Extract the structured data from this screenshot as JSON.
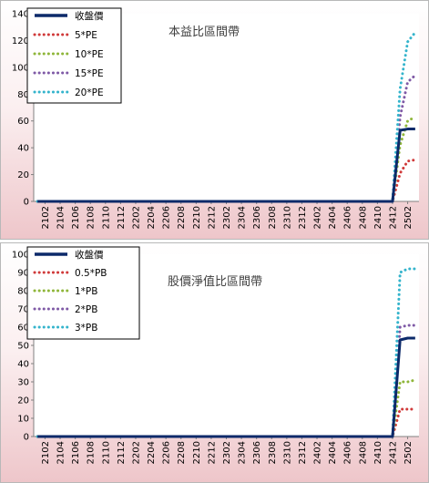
{
  "colors": {
    "close": "#0c2a6a",
    "low": "#d03a3a",
    "mid": "#8fb63a",
    "high": "#7f5aa6",
    "top": "#34b4cc"
  },
  "chart_data": [
    {
      "type": "line",
      "title": "本益比區間帶",
      "x": [
        "2101",
        "2102",
        "2103",
        "2104",
        "2105",
        "2106",
        "2107",
        "2108",
        "2109",
        "2110",
        "2111",
        "2112",
        "2201",
        "2202",
        "2203",
        "2204",
        "2205",
        "2206",
        "2207",
        "2208",
        "2209",
        "2210",
        "2211",
        "2212",
        "2301",
        "2302",
        "2303",
        "2304",
        "2305",
        "2306",
        "2307",
        "2308",
        "2309",
        "2310",
        "2311",
        "2312",
        "2401",
        "2402",
        "2403",
        "2404",
        "2405",
        "2406",
        "2407",
        "2408",
        "2409",
        "2410",
        "2411",
        "2412",
        "2501",
        "2502",
        "2503"
      ],
      "tick_labels": [
        "2102",
        "2104",
        "2106",
        "2108",
        "2110",
        "2112",
        "2202",
        "2204",
        "2206",
        "2208",
        "2210",
        "2212",
        "2302",
        "2304",
        "2306",
        "2308",
        "2310",
        "2312",
        "2402",
        "2404",
        "2406",
        "2408",
        "2410",
        "2412",
        "2502"
      ],
      "ylim": [
        0,
        140
      ],
      "yticks": [
        0,
        20,
        40,
        60,
        80,
        100,
        120,
        140
      ],
      "legend_position": "top-left",
      "series": [
        {
          "name": "收盤價",
          "style": "solid",
          "color_key": "close",
          "tail": [
            53,
            54,
            54
          ]
        },
        {
          "name": "5*PE",
          "style": "dotted",
          "color_key": "low",
          "tail": [
            21,
            30,
            31
          ]
        },
        {
          "name": "10*PE",
          "style": "dotted",
          "color_key": "mid",
          "tail": [
            42,
            60,
            63
          ]
        },
        {
          "name": "15*PE",
          "style": "dotted",
          "color_key": "high",
          "tail": [
            63,
            89,
            94
          ]
        },
        {
          "name": "20*PE",
          "style": "dotted",
          "color_key": "top",
          "tail": [
            84,
            119,
            126
          ]
        }
      ]
    },
    {
      "type": "line",
      "title": "股價淨值比區間帶",
      "x": [
        "2101",
        "2102",
        "2103",
        "2104",
        "2105",
        "2106",
        "2107",
        "2108",
        "2109",
        "2110",
        "2111",
        "2112",
        "2201",
        "2202",
        "2203",
        "2204",
        "2205",
        "2206",
        "2207",
        "2208",
        "2209",
        "2210",
        "2211",
        "2212",
        "2301",
        "2302",
        "2303",
        "2304",
        "2305",
        "2306",
        "2307",
        "2308",
        "2309",
        "2310",
        "2311",
        "2312",
        "2401",
        "2402",
        "2403",
        "2404",
        "2405",
        "2406",
        "2407",
        "2408",
        "2409",
        "2410",
        "2411",
        "2412",
        "2501",
        "2502",
        "2503"
      ],
      "tick_labels": [
        "2102",
        "2104",
        "2106",
        "2108",
        "2110",
        "2112",
        "2202",
        "2204",
        "2206",
        "2208",
        "2210",
        "2212",
        "2302",
        "2304",
        "2306",
        "2308",
        "2310",
        "2312",
        "2402",
        "2404",
        "2406",
        "2408",
        "2410",
        "2412",
        "2502"
      ],
      "ylim": [
        0,
        100
      ],
      "yticks": [
        0,
        10,
        20,
        30,
        40,
        50,
        60,
        70,
        80,
        90,
        100
      ],
      "legend_position": "top-left",
      "series": [
        {
          "name": "收盤價",
          "style": "solid",
          "color_key": "close",
          "tail": [
            53,
            54,
            54
          ]
        },
        {
          "name": "0.5*PB",
          "style": "dotted",
          "color_key": "low",
          "tail": [
            15,
            15,
            15
          ]
        },
        {
          "name": "1*PB",
          "style": "dotted",
          "color_key": "mid",
          "tail": [
            30,
            30,
            31
          ]
        },
        {
          "name": "2*PB",
          "style": "dotted",
          "color_key": "high",
          "tail": [
            60,
            61,
            61
          ]
        },
        {
          "name": "3*PB",
          "style": "dotted",
          "color_key": "top",
          "tail": [
            90,
            92,
            92
          ]
        }
      ]
    }
  ]
}
